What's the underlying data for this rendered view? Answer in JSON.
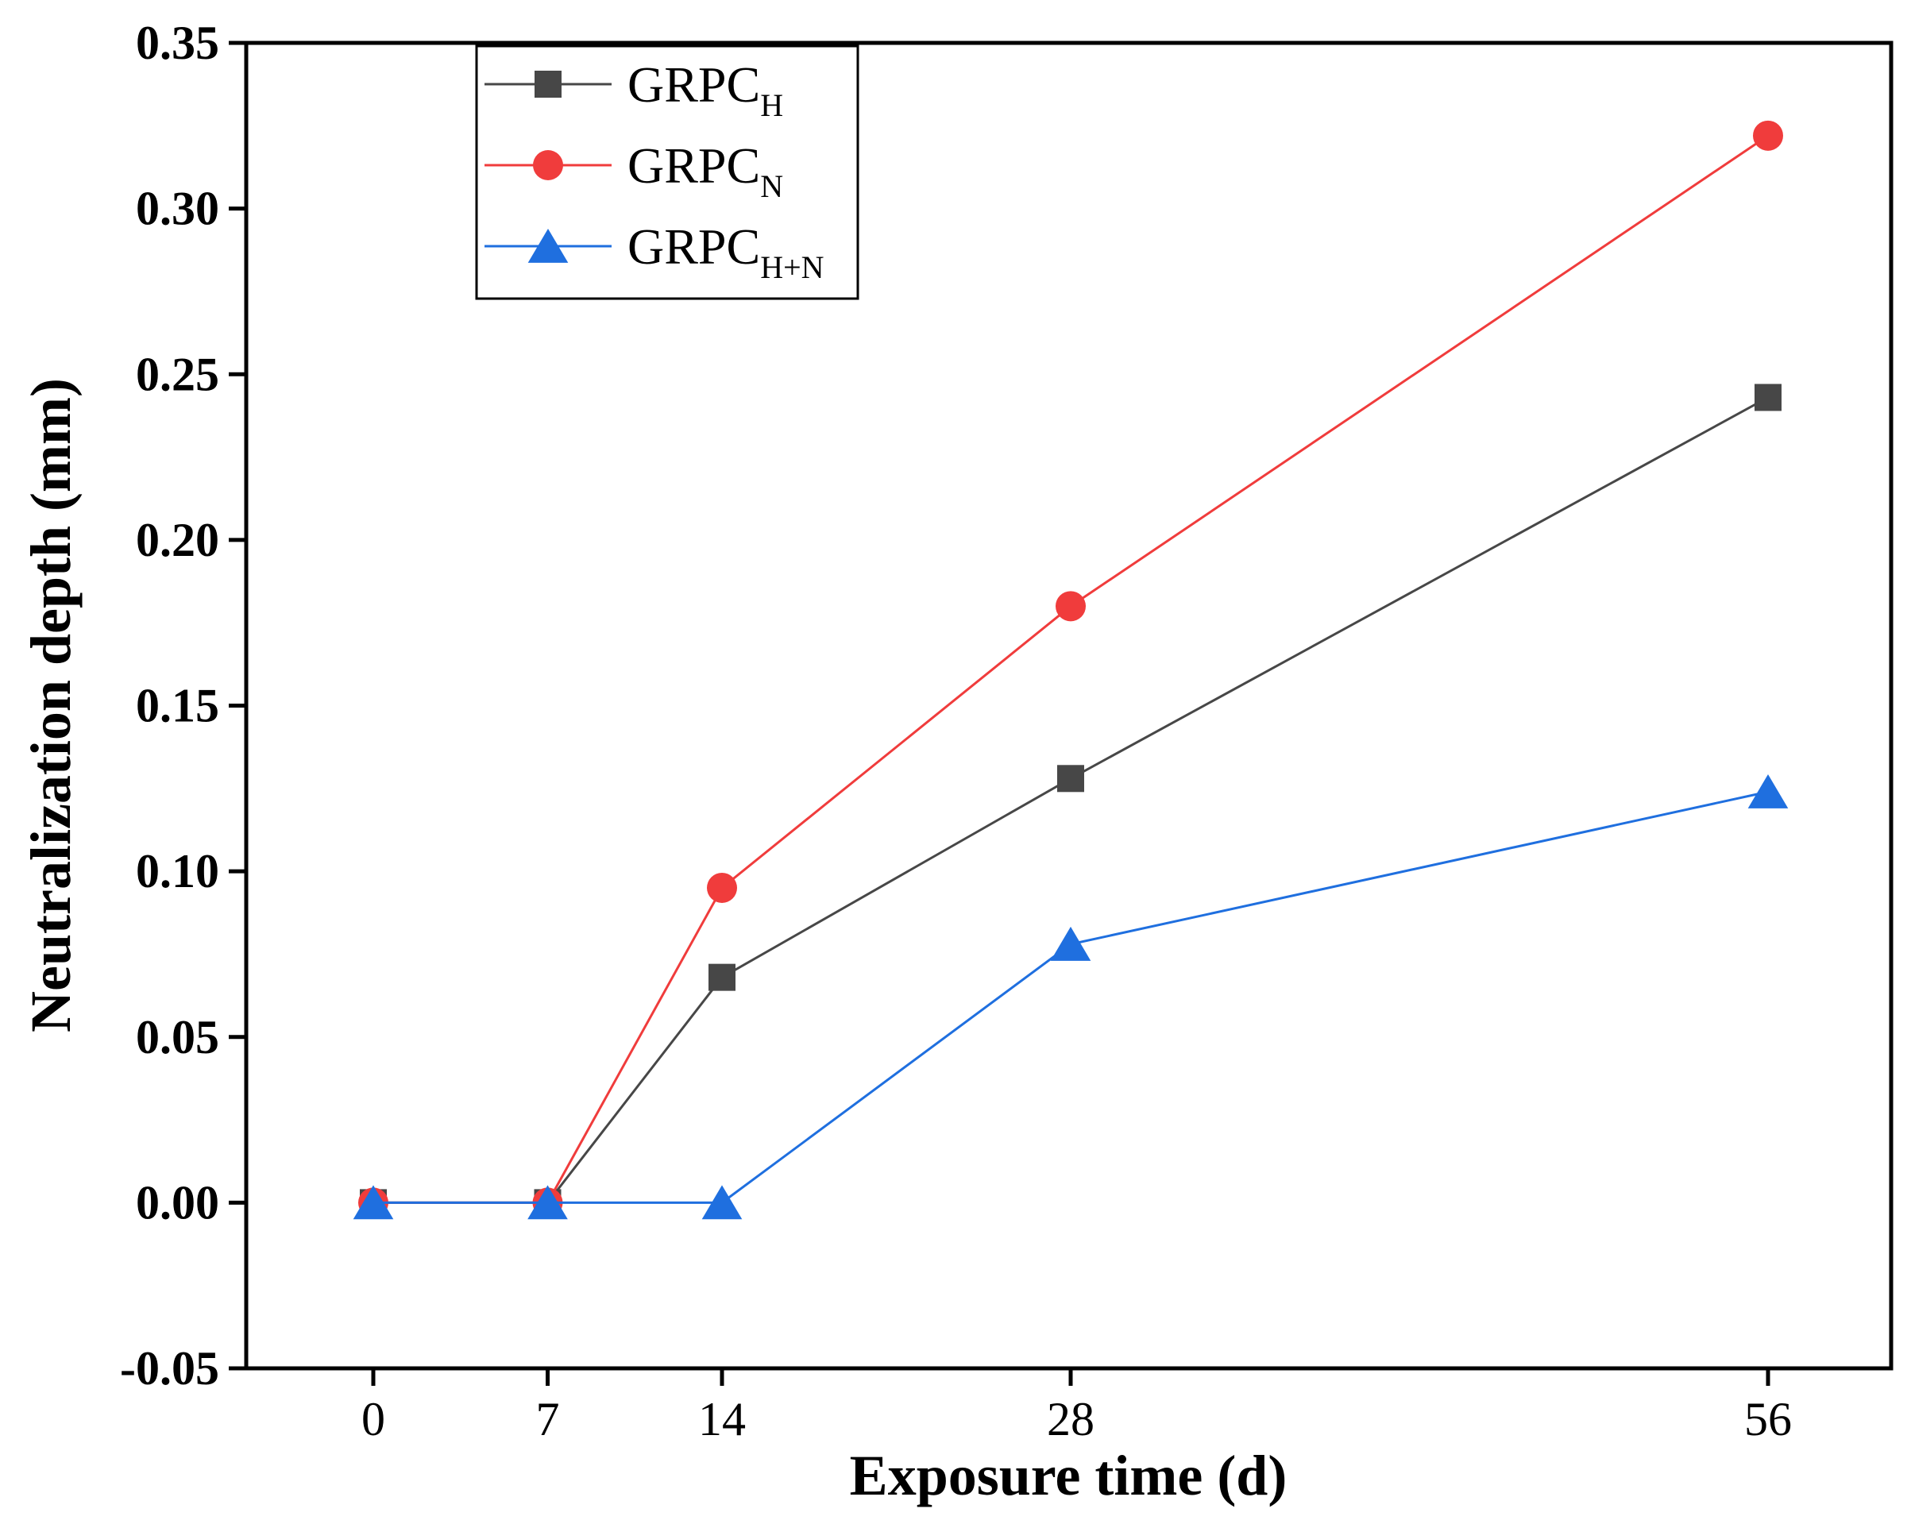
{
  "chart_data": {
    "type": "line",
    "title": "",
    "xlabel": "Exposure time (d)",
    "ylabel": "Neutralization depth (mm)",
    "x": [
      0,
      7,
      14,
      28,
      56
    ],
    "x_tick_labels": [
      "0",
      "7",
      "14",
      "28",
      "56"
    ],
    "xlim": [
      -5,
      61
    ],
    "ylim": [
      -0.05,
      0.35
    ],
    "y_ticks": [
      -0.05,
      0.0,
      0.05,
      0.1,
      0.15,
      0.2,
      0.25,
      0.3,
      0.35
    ],
    "y_tick_labels": [
      "-0.05",
      "0.00",
      "0.05",
      "0.10",
      "0.15",
      "0.20",
      "0.25",
      "0.30",
      "0.35"
    ],
    "grid": false,
    "legend_position": "top-left",
    "series": [
      {
        "name": "GRPC_H",
        "label_main": "GRPC",
        "label_sub": "H",
        "marker": "square",
        "color": "#474747",
        "values": [
          0.0,
          0.0,
          0.068,
          0.128,
          0.243
        ]
      },
      {
        "name": "GRPC_N",
        "label_main": "GRPC",
        "label_sub": "N",
        "marker": "circle",
        "color": "#f03c3c",
        "values": [
          0.0,
          0.0,
          0.095,
          0.18,
          0.322
        ]
      },
      {
        "name": "GRPC_H+N",
        "label_main": "GRPC",
        "label_sub": "H+N",
        "marker": "triangle",
        "color": "#1f6fdf",
        "values": [
          0.0,
          0.0,
          0.0,
          0.078,
          0.124
        ]
      }
    ]
  }
}
